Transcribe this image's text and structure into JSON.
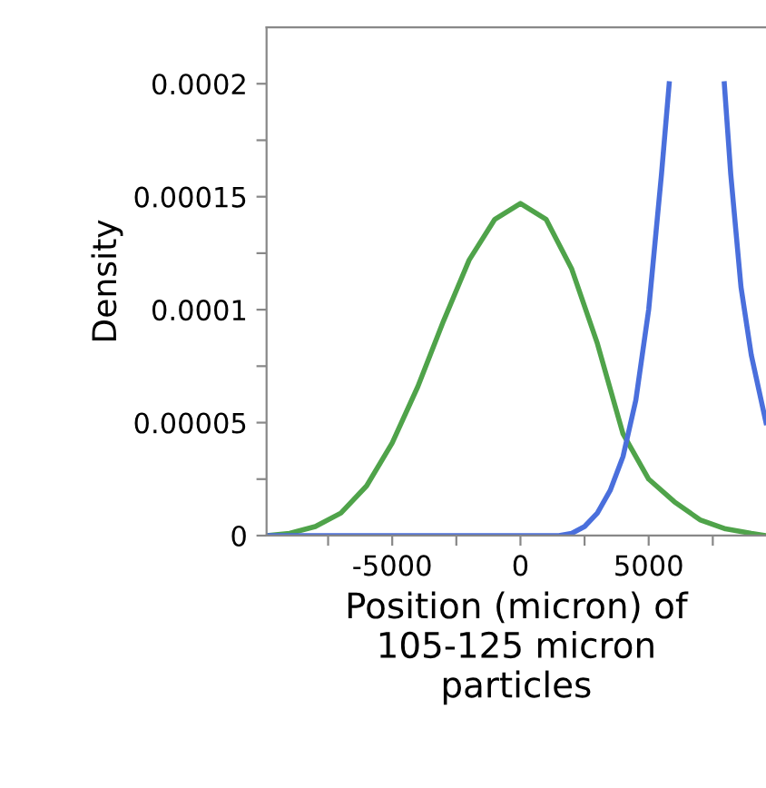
{
  "chart_data": {
    "type": "line",
    "xlabel": "Position (micron) of\n105-125 micron\nparticles",
    "ylabel": "Density",
    "series": [
      {
        "color": "#4fa34a",
        "x": [
          -9900,
          -9000,
          -8000,
          -7000,
          -6000,
          -5000,
          -4000,
          -3000,
          -2000,
          -1000,
          0,
          1000,
          2000,
          3000,
          4000,
          5000,
          6000,
          7000,
          8000,
          9000,
          9575
        ],
        "values": [
          0,
          1e-06,
          4e-06,
          1e-05,
          2.2e-05,
          4.1e-05,
          6.6e-05,
          9.5e-05,
          0.000122,
          0.00014,
          0.000147,
          0.00014,
          0.000118,
          8.5e-05,
          4.5e-05,
          2.5e-05,
          1.5e-05,
          7e-06,
          3e-06,
          1e-06,
          0
        ]
      },
      {
        "color": "#4a6fdc",
        "x": [
          -9900,
          1500,
          2000,
          2500,
          3000,
          3500,
          4000,
          4500,
          5000,
          5500,
          5800,
          6000,
          7800,
          7950,
          8200,
          8600,
          9000,
          9575
        ],
        "values": [
          0,
          0,
          1e-06,
          4e-06,
          1e-05,
          2e-05,
          3.5e-05,
          6e-05,
          0.0001,
          0.00016,
          0.0002,
          null,
          null,
          0.0002,
          0.00016,
          0.00011,
          8e-05,
          5e-05
        ]
      }
    ],
    "xlim": [
      -9900,
      9575
    ],
    "ylim": [
      0,
      0.000225
    ],
    "xticks": [
      {
        "value": -7500,
        "label": null
      },
      -5000,
      {
        "value": -2500,
        "label": null
      },
      0,
      {
        "value": 2500,
        "label": null
      },
      5000,
      {
        "value": 7500,
        "label": null
      }
    ],
    "yticks": [
      0,
      {
        "value": 2.5e-05,
        "label": null
      },
      {
        "value": 5e-05,
        "label": "0.00005"
      },
      {
        "value": 7.5e-05,
        "label": null
      },
      {
        "value": 0.0001,
        "label": "0.0001"
      },
      {
        "value": 0.000125,
        "label": null
      },
      {
        "value": 0.00015,
        "label": "0.00015"
      },
      {
        "value": 0.000175,
        "label": null
      },
      {
        "value": 0.0002,
        "label": "0.0002"
      }
    ],
    "grid": false,
    "line_style": "solid",
    "marker": "none"
  }
}
